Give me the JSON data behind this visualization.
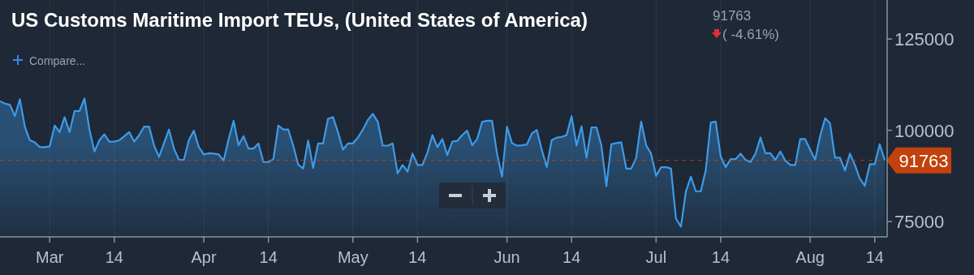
{
  "chart_data": {
    "type": "area",
    "title": "US Customs Maritime Import TEUs, (United States of America)",
    "annotations": [
      "91763",
      "( -4.61%)",
      "Compare..."
    ],
    "x": [
      "--02-19",
      "--02-20",
      "--02-21",
      "--02-22",
      "--02-23",
      "--02-24",
      "--02-25",
      "--02-26",
      "--02-27",
      "--02-28",
      "--03-01",
      "--03-02",
      "--03-03",
      "--03-04",
      "--03-05",
      "--03-06",
      "--03-07",
      "--03-08",
      "--03-09",
      "--03-10",
      "--03-11",
      "--03-12",
      "--03-13",
      "--03-14",
      "--03-15",
      "--03-16",
      "--03-17",
      "--03-18",
      "--03-19",
      "--03-20",
      "--03-21",
      "--03-22",
      "--03-23",
      "--03-24",
      "--03-25",
      "--03-26",
      "--03-27",
      "--03-28",
      "--03-29",
      "--03-30",
      "--03-31",
      "--04-01",
      "--04-02",
      "--04-03",
      "--04-04",
      "--04-05",
      "--04-06",
      "--04-07",
      "--04-08",
      "--04-09",
      "--04-10",
      "--04-11",
      "--04-12",
      "--04-13",
      "--04-14",
      "--04-15",
      "--04-16",
      "--04-17",
      "--04-18",
      "--04-19",
      "--04-20",
      "--04-21",
      "--04-22",
      "--04-23",
      "--04-24",
      "--04-25",
      "--04-26",
      "--04-27",
      "--04-28",
      "--04-29",
      "--04-30",
      "--05-01",
      "--05-02",
      "--05-03",
      "--05-04",
      "--05-05",
      "--05-06",
      "--05-07",
      "--05-08",
      "--05-09",
      "--05-10",
      "--05-11",
      "--05-12",
      "--05-13",
      "--05-14",
      "--05-15",
      "--05-16",
      "--05-17",
      "--05-18",
      "--05-19",
      "--05-20",
      "--05-21",
      "--05-22",
      "--05-23",
      "--05-24",
      "--05-25",
      "--05-26",
      "--05-27",
      "--05-28",
      "--05-29",
      "--05-30",
      "--05-31",
      "--06-01",
      "--06-02",
      "--06-03",
      "--06-04",
      "--06-05",
      "--06-06",
      "--06-07",
      "--06-08",
      "--06-09",
      "--06-10",
      "--06-11",
      "--06-12",
      "--06-13",
      "--06-14",
      "--06-15",
      "--06-16",
      "--06-17",
      "--06-18",
      "--06-19",
      "--06-20",
      "--06-21",
      "--06-22",
      "--06-23",
      "--06-24",
      "--06-25",
      "--06-26",
      "--06-27",
      "--06-28",
      "--06-29",
      "--06-30",
      "--07-01",
      "--07-02",
      "--07-03",
      "--07-04",
      "--07-05",
      "--07-06",
      "--07-07",
      "--07-08",
      "--07-09",
      "--07-10",
      "--07-11",
      "--07-12",
      "--07-13",
      "--07-14",
      "--07-15",
      "--07-16",
      "--07-17",
      "--07-18",
      "--07-19",
      "--07-20",
      "--07-21",
      "--07-22",
      "--07-23",
      "--07-24",
      "--07-25",
      "--07-26",
      "--07-27",
      "--07-28",
      "--07-29",
      "--07-30",
      "--07-31",
      "--08-01",
      "--08-02",
      "--08-03",
      "--08-04",
      "--08-05",
      "--08-06",
      "--08-07",
      "--08-08",
      "--08-09",
      "--08-10",
      "--08-11",
      "--08-12",
      "--08-13",
      "--08-14",
      "--08-15",
      "--08-16"
    ],
    "series": [
      {
        "color": "#3d9be9",
        "values": [
          108000,
          107300,
          107000,
          103900,
          108500,
          101000,
          97300,
          96700,
          95400,
          95400,
          95600,
          101300,
          99500,
          103600,
          99500,
          105300,
          105300,
          108700,
          100200,
          94200,
          97300,
          98900,
          96900,
          96900,
          97300,
          98400,
          99500,
          96900,
          98700,
          101000,
          101000,
          95800,
          92700,
          96500,
          100200,
          95000,
          91900,
          91900,
          97300,
          99900,
          95400,
          93400,
          93700,
          93600,
          93400,
          91700,
          97600,
          102600,
          95900,
          98400,
          95000,
          95000,
          96400,
          91300,
          91300,
          92100,
          101300,
          100200,
          100200,
          95800,
          90600,
          89500,
          97200,
          89700,
          96400,
          96400,
          103200,
          103600,
          99500,
          94700,
          96400,
          96400,
          98000,
          100200,
          102800,
          104500,
          102400,
          95800,
          95800,
          96400,
          88200,
          90500,
          88700,
          93600,
          90500,
          90500,
          93900,
          98700,
          95400,
          97600,
          93200,
          96900,
          97100,
          98700,
          99900,
          95900,
          97600,
          102300,
          102600,
          102600,
          93600,
          87300,
          101000,
          96500,
          95800,
          95900,
          96100,
          99100,
          100100,
          94700,
          89900,
          97300,
          98000,
          98200,
          98700,
          103900,
          95800,
          101100,
          92500,
          100800,
          100800,
          95800,
          84700,
          96200,
          96500,
          96700,
          89500,
          89500,
          92500,
          102400,
          95900,
          93600,
          87500,
          89900,
          89900,
          89500,
          75800,
          73600,
          83200,
          87300,
          83300,
          83300,
          89100,
          102100,
          102400,
          92800,
          89900,
          92100,
          92100,
          93600,
          91900,
          91300,
          93600,
          98000,
          93700,
          93700,
          91900,
          94200,
          91700,
          90500,
          90500,
          97600,
          97600,
          94700,
          91900,
          98400,
          103300,
          101900,
          92500,
          92500,
          89000,
          93600,
          90500,
          86700,
          84800,
          90700,
          90700,
          96200,
          91763
        ]
      }
    ],
    "xlim": [
      "--02-19",
      "--08-16"
    ],
    "xticks": [
      {
        "value": "--03-01",
        "label": "Mar"
      },
      {
        "value": "--03-14",
        "label": "14"
      },
      {
        "value": "--04-01",
        "label": "Apr"
      },
      {
        "value": "--04-14",
        "label": "14"
      },
      {
        "value": "--05-01",
        "label": "May"
      },
      {
        "value": "--05-14",
        "label": "14"
      },
      {
        "value": "--06-01",
        "label": "Jun"
      },
      {
        "value": "--06-14",
        "label": "14"
      },
      {
        "value": "--07-01",
        "label": "Jul"
      },
      {
        "value": "--07-14",
        "label": "14"
      },
      {
        "value": "--08-01",
        "label": "Aug"
      },
      {
        "value": "--08-14",
        "label": "14"
      }
    ],
    "ylim": [
      70800,
      135700
    ],
    "yticks": [
      75000,
      100000,
      125000
    ],
    "grid": "x",
    "ref_lines": [
      {
        "axis": "y",
        "value": 91763,
        "label": "91763",
        "color": "#c2410c",
        "line_style": "dashed"
      }
    ]
  }
}
